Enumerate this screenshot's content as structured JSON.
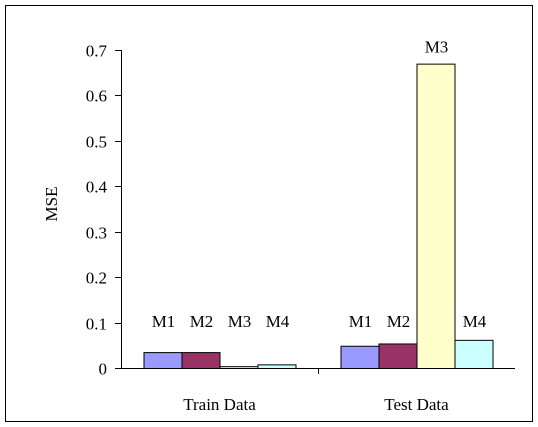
{
  "chart_data": {
    "type": "bar",
    "title": "",
    "xlabel": "",
    "ylabel": "MSE",
    "ylim": [
      0,
      0.7
    ],
    "ytick_step": 0.1,
    "yticks": [
      "0",
      "0.1",
      "0.2",
      "0.3",
      "0.4",
      "0.5",
      "0.6",
      "0.7"
    ],
    "legend": "none",
    "grid": false,
    "categories": [
      "Train Data",
      "Test Data"
    ],
    "series": [
      {
        "name": "M1",
        "color": "#9999ff",
        "values": [
          0.035,
          0.049
        ]
      },
      {
        "name": "M2",
        "color": "#993366",
        "values": [
          0.035,
          0.054
        ]
      },
      {
        "name": "M3",
        "color": "#ffffcc",
        "values": [
          0.004,
          0.67
        ]
      },
      {
        "name": "M4",
        "color": "#ccffff",
        "values": [
          0.008,
          0.062
        ]
      }
    ]
  }
}
